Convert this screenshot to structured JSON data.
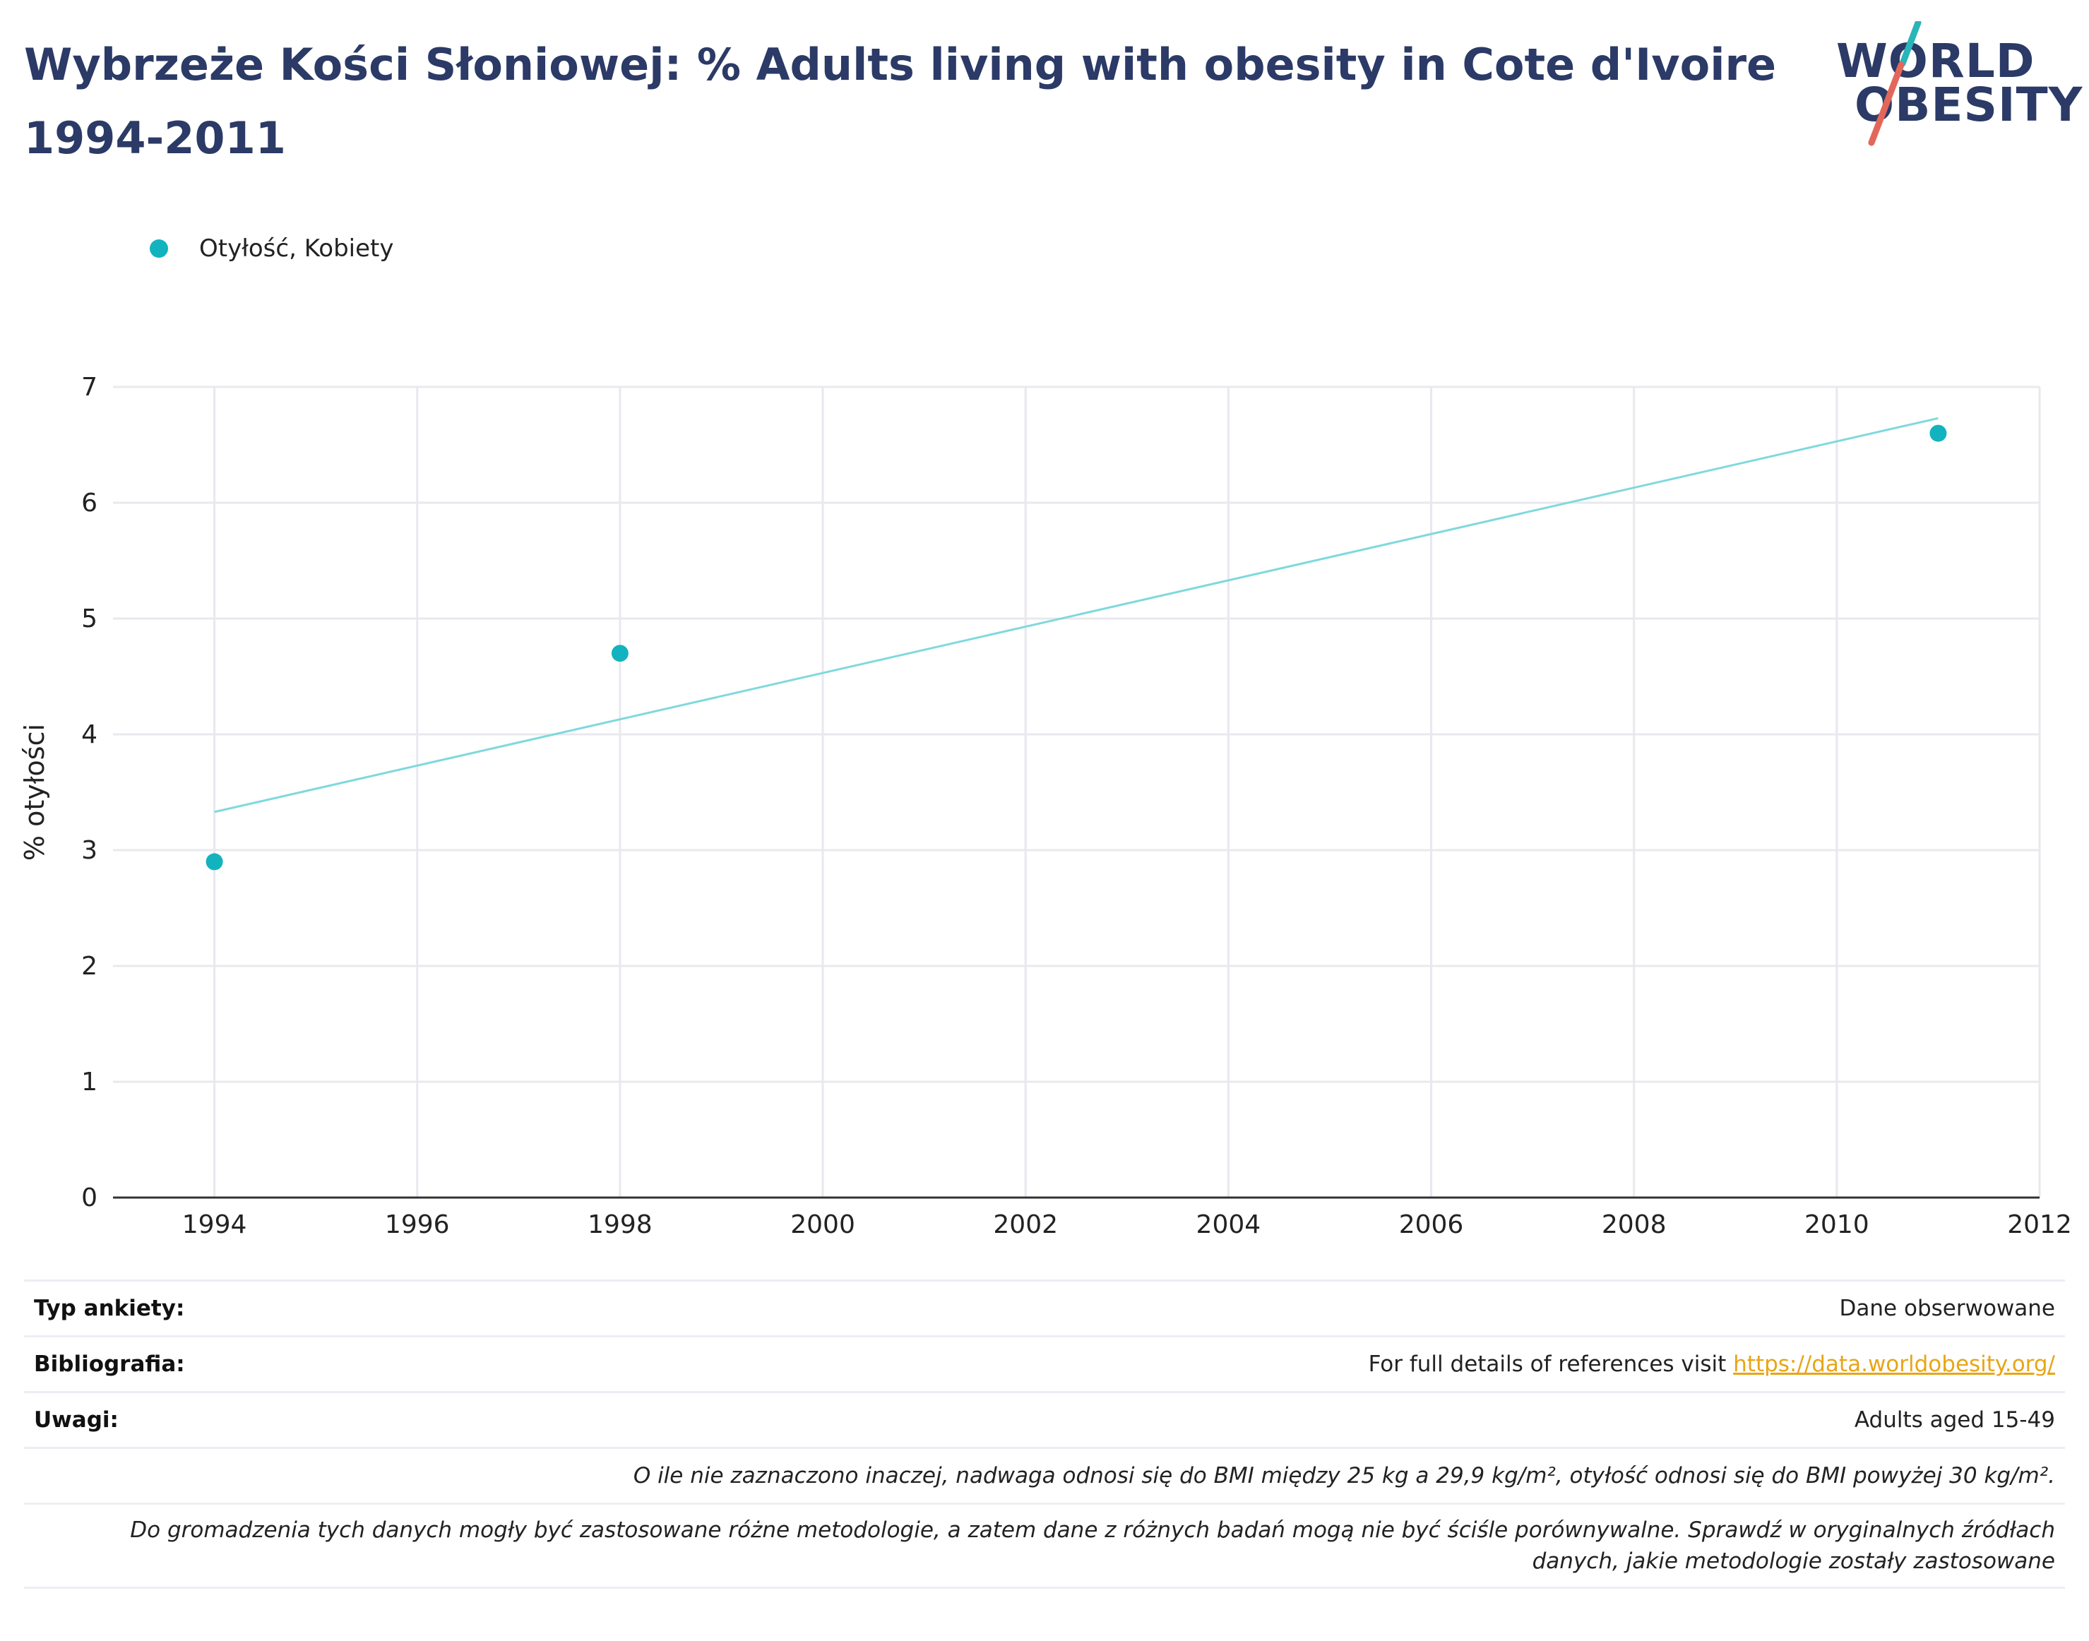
{
  "header": {
    "title": "Wybrzeże Kości Słoniowej: % Adults living with obesity in Cote d'Ivoire 1994-2011"
  },
  "logo": {
    "line1": "WORLD",
    "line2": "OBESITY",
    "colors": {
      "text": "#2b3a66",
      "slash_top": "#2ab5b8",
      "slash_bottom": "#e2675a"
    }
  },
  "legend": {
    "label": "Otyłość, Kobiety",
    "color": "#12b3bf"
  },
  "chart_data": {
    "type": "scatter",
    "x": [
      1994,
      1998,
      2011
    ],
    "series": [
      {
        "name": "Otyłość, Kobiety",
        "values": [
          2.9,
          4.7,
          6.6
        ],
        "color": "#12b3bf"
      }
    ],
    "trendline": {
      "x": [
        1994,
        2011
      ],
      "y": [
        3.33,
        6.73
      ],
      "color": "#7fd9dd"
    },
    "xlim": [
      1993,
      2012
    ],
    "ylim": [
      0,
      7
    ],
    "xticks": [
      1994,
      1996,
      1998,
      2000,
      2002,
      2004,
      2006,
      2008,
      2010,
      2012
    ],
    "yticks": [
      0,
      1,
      2,
      3,
      4,
      5,
      6,
      7
    ],
    "xlabel": "",
    "ylabel": "% otyłości",
    "grid": true,
    "legend_position": "top-left"
  },
  "footer": {
    "survey_type_label": "Typ ankiety:",
    "survey_type_value": "Dane obserwowane",
    "bibliography_label": "Bibliografia:",
    "bibliography_text": "For full details of references visit ",
    "bibliography_link": "https://data.worldobesity.org/",
    "notes_label": "Uwagi:",
    "notes_value": "Adults aged 15-49",
    "definition_note": "O ile nie zaznaczono inaczej, nadwaga odnosi się do BMI między 25 kg a 29,9 kg/m², otyłość odnosi się do BMI powyżej 30 kg/m².",
    "methodology_note": "Do gromadzenia tych danych mogły być zastosowane różne metodologie, a zatem dane z różnych badań mogą nie być ściśle porównywalne. Sprawdź w oryginalnych źródłach danych, jakie metodologie zostały zastosowane"
  }
}
